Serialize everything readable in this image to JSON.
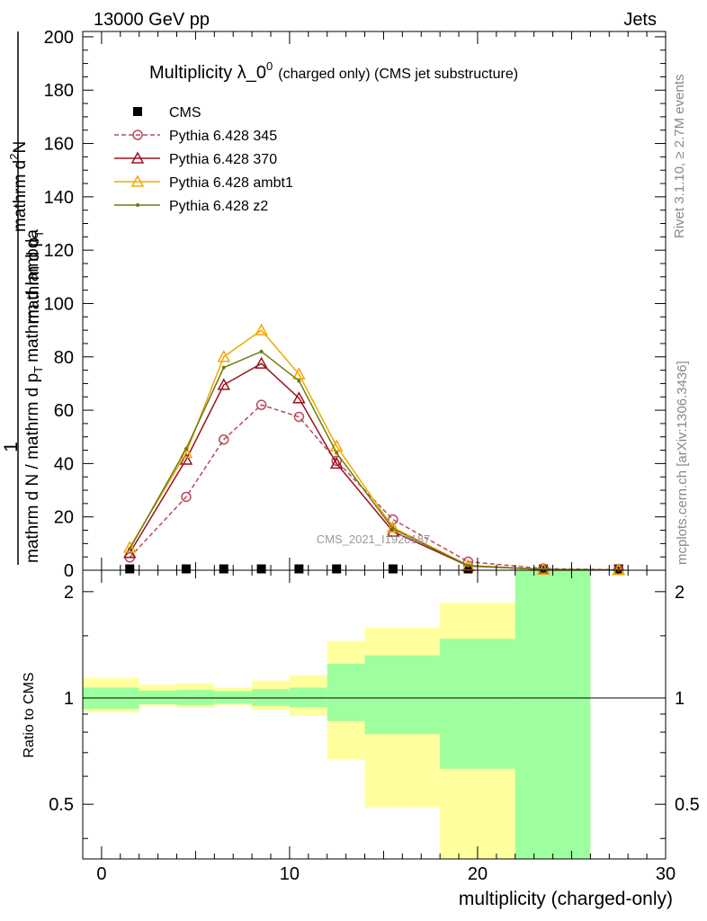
{
  "header": {
    "energy": "13000 GeV pp",
    "process": "Jets",
    "title_main": "Multiplicity λ_0",
    "title_sup": "0",
    "title_sub": "(charged only) (CMS jet substructure)",
    "side_top": "Rivet 3.1.10, ≥ 2.7M events",
    "side_bottom": "mcplots.cern.ch [arXiv:1306.3436]",
    "watermark": "CMS_2021_I1920187"
  },
  "axes": {
    "ylabel_num": "1",
    "ylabel_frac1": "mathrm d N / mathrm d p",
    "ylabel_frac1_sub": "T",
    "ylabel_frac2": "mathrm d",
    "ylabel_frac2_sup": "2",
    "ylabel_frac2b": "N",
    "ylabel_denom": "mathrm d p",
    "ylabel_denom_sub": "T",
    "ylabel_denom_b": "mathrm d lambda",
    "ratio_ylabel": "Ratio to CMS",
    "xlabel": "multiplicity (charged-only)",
    "main_yticks": [
      "0",
      "20",
      "40",
      "60",
      "80",
      "100",
      "120",
      "140",
      "160",
      "180",
      "200"
    ],
    "ratio_yticks": [
      "0.5",
      "1",
      "2"
    ],
    "xticks": [
      "0",
      "10",
      "20",
      "30"
    ]
  },
  "chart_data": {
    "type": "line",
    "xlim": [
      -1,
      30
    ],
    "ylim": [
      0,
      202
    ],
    "ratio_ylim": [
      0.35,
      2.3
    ],
    "ratio_scale": "log",
    "legend_position": "top-left",
    "bin_edges": [
      -1,
      2,
      4,
      6,
      8,
      10,
      12,
      14,
      18,
      22,
      26,
      30
    ],
    "x": [
      1.5,
      4.5,
      6.5,
      8.5,
      10.5,
      12.5,
      15.5,
      19.5,
      23.5,
      27.5
    ],
    "series": [
      {
        "name": "CMS",
        "color": "#000000",
        "marker": "square",
        "values": [
          0.5,
          0.5,
          0.5,
          0.5,
          0.5,
          0.5,
          0.5,
          0.5,
          0.5,
          0.5
        ]
      },
      {
        "name": "Pythia 6.428 345",
        "color": "#b94a5a",
        "marker": "circle-open",
        "dashed": true,
        "values": [
          4.8,
          27.5,
          49,
          62,
          57.5,
          41,
          19,
          3.2,
          0.6,
          0.2
        ]
      },
      {
        "name": "Pythia 6.428 370",
        "color": "#9b1020",
        "marker": "triangle-open",
        "dashed": false,
        "values": [
          6.5,
          41.5,
          69.5,
          77.5,
          64.5,
          40,
          14.5,
          1.6,
          0.3,
          0.1
        ]
      },
      {
        "name": "Pythia 6.428 ambt1",
        "color": "#f0a800",
        "marker": "triangle-open",
        "dashed": false,
        "values": [
          8.5,
          44,
          80,
          90,
          73.5,
          46.5,
          16,
          1.8,
          0.3,
          0.1
        ]
      },
      {
        "name": "Pythia 6.428 z2",
        "color": "#6b7a10",
        "marker": "dot",
        "dashed": false,
        "values": [
          8.0,
          45.5,
          76,
          82,
          71,
          44,
          15.5,
          1.7,
          0.3,
          0.1
        ]
      }
    ],
    "ratio_bands": {
      "stat_low": [
        0.93,
        0.96,
        0.955,
        0.965,
        0.95,
        0.94,
        0.86,
        0.79,
        0.63,
        0.35
      ],
      "stat_high": [
        1.07,
        1.05,
        1.055,
        1.045,
        1.06,
        1.07,
        1.25,
        1.32,
        1.47,
        2.3
      ],
      "total_low": [
        0.91,
        0.95,
        0.94,
        0.955,
        0.925,
        0.89,
        0.67,
        0.49,
        0.35,
        0.35
      ],
      "total_high": [
        1.14,
        1.09,
        1.1,
        1.07,
        1.12,
        1.16,
        1.45,
        1.58,
        1.86,
        2.3
      ],
      "stat_color": "#9eff9e",
      "total_color": "#ffff9e"
    }
  }
}
